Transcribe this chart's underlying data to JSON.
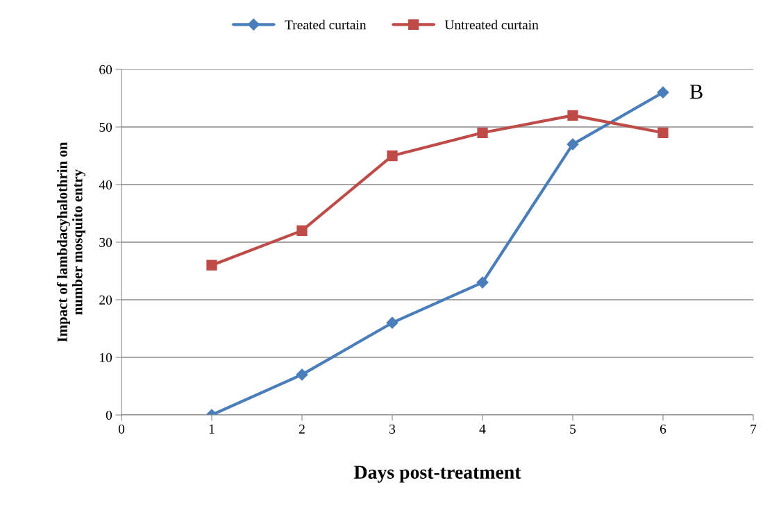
{
  "chart_data": {
    "type": "line",
    "xlabel": "Days post-treatment",
    "ylabel": "Impact of lambdacyhalothrin on\nnumber mosquito entry",
    "x": [
      1,
      2,
      3,
      4,
      5,
      6
    ],
    "series": [
      {
        "name": "Treated curtain",
        "color": "#4a7ebb",
        "marker": "diamond",
        "values": [
          0,
          7,
          16,
          23,
          47,
          56
        ]
      },
      {
        "name": "Untreated curtain",
        "color": "#be4b48",
        "marker": "square",
        "values": [
          26,
          32,
          45,
          49,
          52,
          49
        ]
      }
    ],
    "xlim": [
      0,
      7
    ],
    "xticks": [
      0,
      1,
      2,
      3,
      4,
      5,
      6,
      7
    ],
    "ylim": [
      0,
      60
    ],
    "yticks": [
      0,
      10,
      20,
      30,
      40,
      50,
      60
    ],
    "grid": "y",
    "legend": "top",
    "annotations": [
      "B"
    ]
  }
}
